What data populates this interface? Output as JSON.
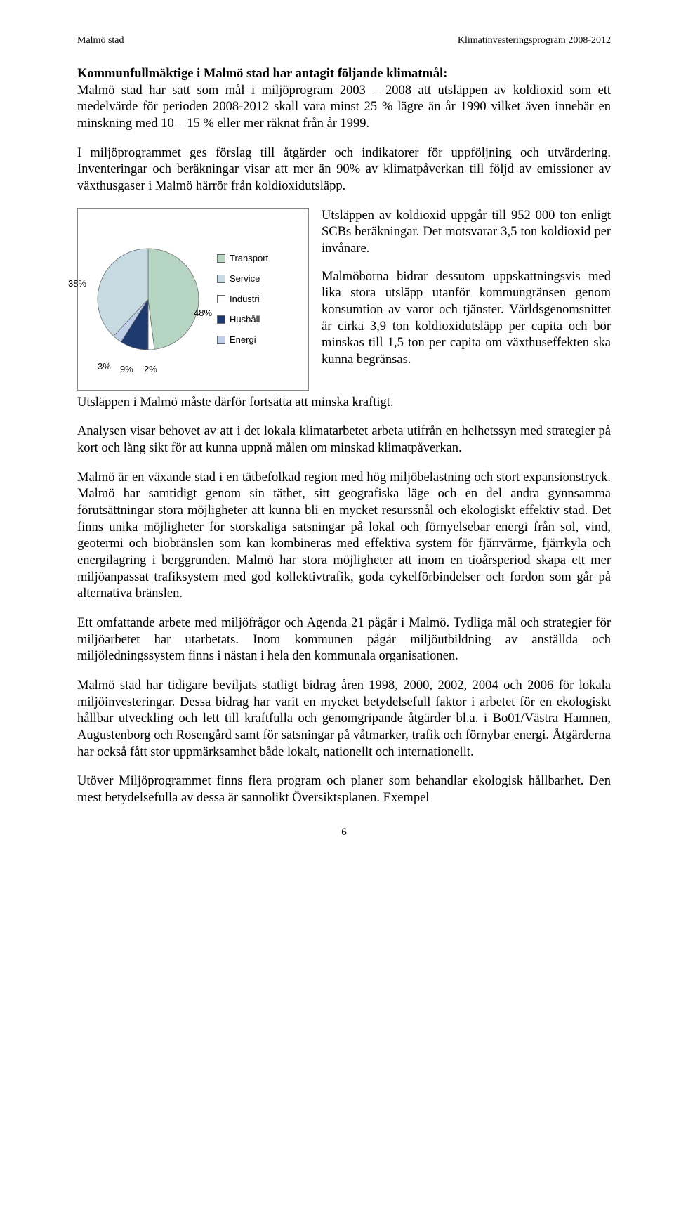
{
  "header": {
    "left": "Malmö stad",
    "right": "Klimatinvesteringsprogram 2008-2012"
  },
  "intro": {
    "bold": "Kommunfullmäktige i Malmö stad har antagit följande klimatmål:",
    "rest": "Malmö stad har satt som mål i miljöprogram 2003 – 2008 att utsläppen av koldioxid som ett medelvärde för perioden 2008-2012 skall vara minst 25 % lägre än år 1990 vilket även innebär en minskning med 10 – 15 % eller mer räknat från år 1999."
  },
  "para2": "I miljöprogrammet ges förslag till åtgärder och indikatorer för uppföljning och utvärdering. Inventeringar och beräkningar visar att mer än 90% av klimatpåverkan till följd av emissioner av växthusgaser i Malmö härrör från koldioxidutsläpp.",
  "chart": {
    "type": "pie",
    "slices": [
      {
        "label": "Transport",
        "value": 48,
        "color": "#b5d4c2"
      },
      {
        "label": "Service",
        "value": 38,
        "color": "#c7d9e1"
      },
      {
        "label": "Industri",
        "value": 2,
        "color": "#ffffff"
      },
      {
        "label": "Hushåll",
        "value": 9,
        "color": "#1f3a6e"
      },
      {
        "label": "Energi",
        "value": 3,
        "color": "#bfcfe8"
      }
    ],
    "label_fontsize": 13,
    "font_family": "Arial",
    "border_color": "#888888",
    "bg_color": "#ffffff",
    "display_labels": {
      "left_38": "38%",
      "bottom_3": "3%",
      "bottom_9": "9%",
      "bottom_2": "2%",
      "right_48": "48%"
    },
    "legend": [
      "Transport",
      "Service",
      "Industri",
      "Hushåll",
      "Energi"
    ]
  },
  "right_text_1": "Utsläppen av koldioxid uppgår till 952 000 ton enligt SCBs beräkningar. Det motsvarar 3,5 ton koldioxid per invånare.",
  "right_text_2": "Malmöborna bidrar dessutom uppskattningsvis med lika stora utsläpp utanför kommungränsen genom konsumtion av varor och tjänster. Världsgenomsnittet är cirka 3,9 ton koldioxidutsläpp per capita och bör minskas till 1,5 ton per capita om växthuseffekten ska kunna begränsas.",
  "after_chart": "Utsläppen i Malmö måste därför fortsätta att minska kraftigt.",
  "para3": "Analysen visar behovet av att i det lokala klimatarbetet arbeta utifrån en helhetssyn med strategier på kort och lång sikt för att kunna uppnå målen om minskad klimatpåverkan.",
  "para4": "Malmö är en växande stad i en tätbefolkad region med hög miljöbelastning och stort expansionstryck. Malmö har samtidigt genom sin täthet, sitt geografiska läge och en del andra gynnsamma förutsättningar stora möjligheter att kunna bli en mycket resurssnål och ekologiskt effektiv stad. Det finns unika möjligheter för storskaliga satsningar på lokal och förnyelsebar energi från sol, vind, geotermi och biobränslen som kan kombineras med effektiva system för fjärrvärme, fjärrkyla och energilagring i berggrunden. Malmö har stora möjligheter att inom en tioårsperiod skapa ett mer miljöanpassat trafiksystem med god kollektivtrafik, goda cykelförbindelser och fordon som går på alternativa bränslen.",
  "para5": "Ett omfattande arbete med miljöfrågor och Agenda 21 pågår i Malmö. Tydliga mål och strategier för miljöarbetet har utarbetats. Inom kommunen pågår miljöutbildning av anställda och miljöledningssystem finns i nästan i hela den kommunala organisationen.",
  "para6": "Malmö stad har tidigare beviljats statligt bidrag åren 1998, 2000, 2002, 2004 och 2006 för lokala miljöinvesteringar. Dessa bidrag har varit en mycket betydelsefull faktor i arbetet för en ekologiskt hållbar utveckling och lett till kraftfulla och genomgripande åtgärder bl.a. i Bo01/Västra Hamnen, Augustenborg och Rosengård samt för satsningar på våtmarker, trafik och förnybar energi. Åtgärderna har också fått stor uppmärksamhet både lokalt, nationellt och internationellt.",
  "para7": "Utöver Miljöprogrammet finns flera program och planer som behandlar ekologisk hållbarhet. Den mest betydelsefulla av dessa är sannolikt Översiktsplanen. Exempel",
  "page_number": "6"
}
